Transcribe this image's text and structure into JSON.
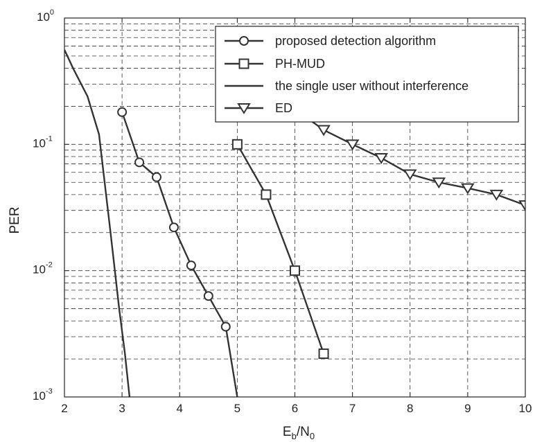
{
  "chart_data": {
    "type": "line",
    "xlabel": {
      "main": "E",
      "sub1": "b",
      "mid": "/N",
      "sub2": "0"
    },
    "ylabel": "PER",
    "xlim": [
      2,
      10
    ],
    "ylim": [
      0.001,
      1
    ],
    "yscale": "log",
    "grid": true,
    "legend_position": "top-right",
    "x_ticks": [
      "2",
      "3",
      "4",
      "5",
      "6",
      "7",
      "8",
      "9",
      "10"
    ],
    "y_ticks": [
      {
        "base": "10",
        "exp": "0"
      },
      {
        "base": "10",
        "exp": "-1"
      },
      {
        "base": "10",
        "exp": "-2"
      },
      {
        "base": "10",
        "exp": "-3"
      }
    ],
    "series": [
      {
        "name": "proposed detection algorithm",
        "marker": "circle",
        "x": [
          3.0,
          3.3,
          3.6,
          3.9,
          4.2,
          4.5,
          4.8,
          5.0
        ],
        "y": [
          0.18,
          0.072,
          0.055,
          0.022,
          0.011,
          0.0063,
          0.0036,
          0.001
        ],
        "marker_count": 7
      },
      {
        "name": "PH-MUD",
        "marker": "square",
        "x": [
          5.0,
          5.5,
          6.0,
          6.5
        ],
        "y": [
          0.1,
          0.04,
          0.01,
          0.0022
        ],
        "marker_count": 4
      },
      {
        "name": "the single user without interference",
        "marker": "none",
        "x": [
          2.0,
          2.15,
          2.4,
          2.6,
          2.8,
          2.95,
          3.05,
          3.13
        ],
        "y": [
          0.56,
          0.4,
          0.24,
          0.12,
          0.02,
          0.005,
          0.0022,
          0.001
        ]
      },
      {
        "name": "ED",
        "marker": "triangle-down",
        "x": [
          6.0,
          6.5,
          7.0,
          7.5,
          8.0,
          8.5,
          9.0,
          9.5,
          10.0
        ],
        "y": [
          0.19,
          0.13,
          0.1,
          0.078,
          0.058,
          0.05,
          0.045,
          0.04,
          0.033
        ],
        "marker_from": 1
      }
    ]
  }
}
